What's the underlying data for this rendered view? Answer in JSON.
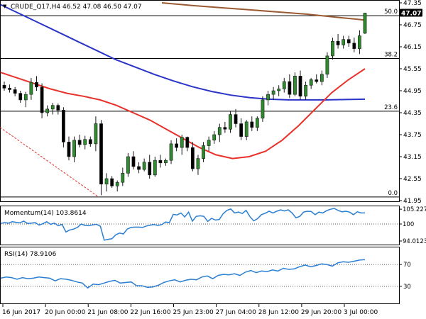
{
  "header": {
    "symbol_line": "CRUDE_Q17,H4  46.52 47.08 46.50 47.07"
  },
  "colors": {
    "bull": "#2e8b2e",
    "bear": "#2e8b2e",
    "wick": "#1a1a1a",
    "sma20": "#e8312a",
    "sma100": "#2a34c8",
    "sma200": "#9b5a32",
    "momentum": "#2a7fd4",
    "rsi": "#2a7fd4",
    "fib": "#000000",
    "trend": "#e8312a",
    "current_label_bg": "#000000"
  },
  "chart_data": [
    {
      "type": "candlestick",
      "panel": "price",
      "ylim": [
        41.95,
        47.35
      ],
      "ticks": [
        "47.35",
        "46.75",
        "46.15",
        "45.55",
        "44.95",
        "44.35",
        "43.75",
        "43.15",
        "42.55",
        "41.95"
      ],
      "current_price": "47.07",
      "fib_levels": [
        {
          "label": "50.0",
          "price": 47.0
        },
        {
          "label": "38.2",
          "price": 45.83
        },
        {
          "label": "23.6",
          "price": 44.39
        },
        {
          "label": "0.0",
          "price": 42.05
        }
      ],
      "candles": [
        [
          45.1,
          45.2,
          44.95,
          45.02
        ],
        [
          45.02,
          45.12,
          44.9,
          44.98
        ],
        [
          44.98,
          45.05,
          44.8,
          44.88
        ],
        [
          44.88,
          44.95,
          44.62,
          44.7
        ],
        [
          44.7,
          44.92,
          44.5,
          44.85
        ],
        [
          44.85,
          45.3,
          44.7,
          45.18
        ],
        [
          45.18,
          45.35,
          44.95,
          45.05
        ],
        [
          45.05,
          45.15,
          44.2,
          44.35
        ],
        [
          44.35,
          44.55,
          44.25,
          44.45
        ],
        [
          44.45,
          44.62,
          44.3,
          44.55
        ],
        [
          44.55,
          44.6,
          44.3,
          44.42
        ],
        [
          44.42,
          44.5,
          43.4,
          43.55
        ],
        [
          43.55,
          43.7,
          43.05,
          43.15
        ],
        [
          43.15,
          43.7,
          43.0,
          43.6
        ],
        [
          43.6,
          43.75,
          43.4,
          43.48
        ],
        [
          43.48,
          43.72,
          43.35,
          43.62
        ],
        [
          43.62,
          43.7,
          43.42,
          43.5
        ],
        [
          43.5,
          44.25,
          43.3,
          44.05
        ],
        [
          44.05,
          44.15,
          42.1,
          42.4
        ],
        [
          42.4,
          42.7,
          42.2,
          42.55
        ],
        [
          42.55,
          42.62,
          42.3,
          42.35
        ],
        [
          42.35,
          42.5,
          42.2,
          42.45
        ],
        [
          42.45,
          42.85,
          42.35,
          42.7
        ],
        [
          42.7,
          43.25,
          42.6,
          43.15
        ],
        [
          43.15,
          43.3,
          42.8,
          42.88
        ],
        [
          42.88,
          43.0,
          42.7,
          42.8
        ],
        [
          42.8,
          43.1,
          42.75,
          43.0
        ],
        [
          43.0,
          43.2,
          42.55,
          42.65
        ],
        [
          42.65,
          43.15,
          42.6,
          43.05
        ],
        [
          43.05,
          43.2,
          42.85,
          42.98
        ],
        [
          42.98,
          43.1,
          42.9,
          43.05
        ],
        [
          43.05,
          43.6,
          42.95,
          43.5
        ],
        [
          43.5,
          43.65,
          43.3,
          43.4
        ],
        [
          43.4,
          43.75,
          43.2,
          43.68
        ],
        [
          43.68,
          43.7,
          43.3,
          43.4
        ],
        [
          43.4,
          43.55,
          42.75,
          42.82
        ],
        [
          42.82,
          43.2,
          42.65,
          43.1
        ],
        [
          43.1,
          43.55,
          43.0,
          43.45
        ],
        [
          43.45,
          43.7,
          43.3,
          43.6
        ],
        [
          43.6,
          43.85,
          43.5,
          43.75
        ],
        [
          43.75,
          44.05,
          43.55,
          43.95
        ],
        [
          43.95,
          44.1,
          43.8,
          43.9
        ],
        [
          43.9,
          44.4,
          43.8,
          44.3
        ],
        [
          44.3,
          44.45,
          43.95,
          44.05
        ],
        [
          44.05,
          44.2,
          43.6,
          43.7
        ],
        [
          43.7,
          44.15,
          43.6,
          44.1
        ],
        [
          44.1,
          44.25,
          43.85,
          43.95
        ],
        [
          43.95,
          44.25,
          43.85,
          44.2
        ],
        [
          44.2,
          44.8,
          44.1,
          44.7
        ],
        [
          44.7,
          44.95,
          44.55,
          44.85
        ],
        [
          44.85,
          45.05,
          44.7,
          44.95
        ],
        [
          44.95,
          45.1,
          44.8,
          45.0
        ],
        [
          45.0,
          45.3,
          44.9,
          45.2
        ],
        [
          45.2,
          45.4,
          44.75,
          44.85
        ],
        [
          44.85,
          45.45,
          44.8,
          45.35
        ],
        [
          45.35,
          45.5,
          44.7,
          44.8
        ],
        [
          44.8,
          45.2,
          44.7,
          45.1
        ],
        [
          45.1,
          45.3,
          45.0,
          45.25
        ],
        [
          45.25,
          45.4,
          45.15,
          45.2
        ],
        [
          45.2,
          45.5,
          45.1,
          45.4
        ],
        [
          45.4,
          46.0,
          45.3,
          45.9
        ],
        [
          45.9,
          46.4,
          45.8,
          46.3
        ],
        [
          46.3,
          46.5,
          46.1,
          46.2
        ],
        [
          46.2,
          46.45,
          46.1,
          46.35
        ],
        [
          46.35,
          46.45,
          46.15,
          46.25
        ],
        [
          46.25,
          46.4,
          46.0,
          46.1
        ],
        [
          46.1,
          46.6,
          45.95,
          46.45
        ],
        [
          46.52,
          47.08,
          46.5,
          47.07
        ]
      ],
      "sma20": [
        45.45,
        45.3,
        45.15,
        45.0,
        44.88,
        44.8,
        44.7,
        44.55,
        44.35,
        44.15,
        43.9,
        43.65,
        43.4,
        43.2,
        43.1,
        43.15,
        43.3,
        43.6,
        44.0,
        44.45,
        44.9,
        45.25,
        45.55
      ],
      "sma100": [
        47.3,
        47.05,
        46.8,
        46.55,
        46.3,
        46.05,
        45.8,
        45.6,
        45.4,
        45.22,
        45.06,
        44.93,
        44.83,
        44.76,
        44.72,
        44.7,
        44.7,
        44.7,
        44.71,
        44.72
      ],
      "sma200": [
        47.35,
        47.28,
        47.22,
        47.16,
        47.1,
        47.04,
        46.96,
        46.88
      ],
      "trendline": [
        [
          0,
          43.95
        ],
        [
          17,
          42.05
        ]
      ]
    },
    {
      "type": "line",
      "panel": "momentum",
      "header": "Momentum(14) 103.8614",
      "ylim": [
        93.0,
        106.0
      ],
      "ticks": [
        "105.2272",
        "100",
        "94.0123"
      ],
      "values": [
        100.2,
        100.5,
        100.3,
        100.8,
        100.6,
        100.4,
        101.0,
        100.2,
        100.3,
        100.5,
        99.6,
        100.1,
        100.8,
        99.9,
        100.3,
        99.4,
        99.9,
        97.2,
        97.9,
        98.2,
        98.8,
        100.0,
        99.5,
        99.4,
        99.7,
        99.9,
        99.2,
        94.3,
        94.6,
        94.8,
        96.2,
        96.8,
        96.5,
        98.2,
        98.8,
        98.9,
        98.9,
        98.8,
        99.3,
        99.6,
        99.8,
        99.5,
        99.8,
        100.7,
        100.5,
        103.4,
        103.2,
        103.9,
        102.5,
        104.2,
        101.0,
        102.7,
        102.9,
        102.7,
        100.9,
        102.0,
        101.4,
        101.6,
        103.6,
        104.8,
        105.3,
        103.9,
        104.2,
        103.7,
        104.8,
        102.6,
        101.1,
        101.9,
        103.3,
        103.8,
        104.5,
        103.9,
        104.5,
        105.0,
        104.6,
        105.0,
        103.9,
        102.2,
        102.7,
        104.2,
        104.5,
        104.4,
        103.3,
        104.2,
        103.9,
        104.7,
        105.2,
        105.5,
        104.8,
        104.3,
        104.5,
        104.2,
        103.3,
        104.3,
        103.9,
        103.9
      ],
      "ref": 100
    },
    {
      "type": "line",
      "panel": "rsi",
      "header": "RSI(14) 78.9106",
      "ylim": [
        0,
        100
      ],
      "ticks": [
        "70",
        "30"
      ],
      "values": [
        45,
        47,
        46,
        43,
        46,
        44,
        45,
        47,
        46,
        45,
        40,
        44,
        43,
        41,
        38,
        36,
        27,
        34,
        33,
        36,
        39,
        41,
        36,
        37,
        38,
        31,
        31,
        28,
        29,
        32,
        37,
        40,
        42,
        38,
        41,
        43,
        42,
        47,
        49,
        44,
        50,
        52,
        51,
        53,
        50,
        56,
        59,
        55,
        58,
        57,
        60,
        58,
        63,
        61,
        62,
        66,
        69,
        66,
        68,
        71,
        70,
        67,
        73,
        75,
        74,
        76,
        78,
        79
      ],
      "levels": [
        70,
        30
      ]
    }
  ],
  "xaxis": {
    "labels": [
      "16 Jun 2017",
      "20 Jun 00:00",
      "21 Jun 08:00",
      "22 Jun 16:00",
      "25 Jun 23:00",
      "27 Jun 04:00",
      "28 Jun 12:00",
      "29 Jun 20:00",
      "3 Jul 00:00"
    ]
  }
}
